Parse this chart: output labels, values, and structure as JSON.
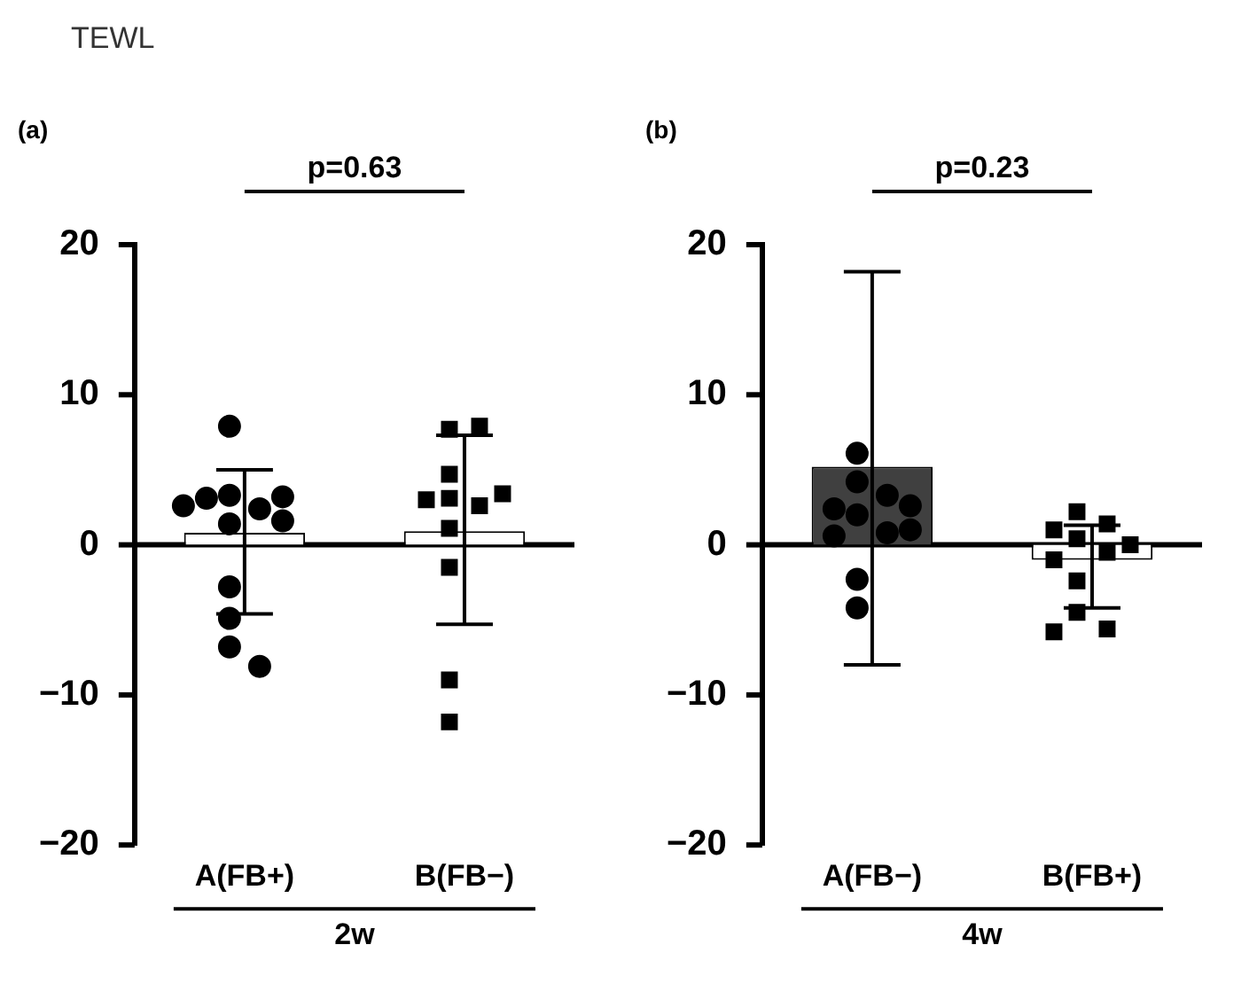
{
  "chart_data": [
    {
      "type": "bar",
      "title": "TEWL",
      "subtitle": "(a)",
      "xlabel": "2w",
      "categories": [
        "A(FB+)",
        "B(FB−)"
      ],
      "annotations": [
        "p=0.63"
      ],
      "ylim": [
        -20,
        20
      ],
      "yticks": [
        -20,
        -10,
        0,
        10,
        20
      ],
      "grid": false,
      "ref_lines": [
        {
          "axis": "y",
          "value": 0
        }
      ],
      "series": [
        {
          "type": "bar",
          "colors": [
            "#ffffff",
            "#ffffff"
          ],
          "values": [
            0.8,
            0.9
          ],
          "errors": [
            [
              -4.6,
              5.0
            ],
            [
              -5.3,
              7.3
            ]
          ]
        },
        {
          "type": "scatter",
          "marker": "circle",
          "color": "#000000",
          "x": [
            "A(FB+)",
            "A(FB+)",
            "A(FB+)",
            "A(FB+)",
            "A(FB+)",
            "A(FB+)",
            "A(FB+)",
            "A(FB+)",
            "A(FB+)",
            "A(FB+)",
            "A(FB+)",
            "A(FB+)"
          ],
          "values": [
            7.9,
            3.3,
            2.4,
            3.1,
            3.2,
            2.6,
            1.4,
            1.6,
            -2.8,
            -4.9,
            -6.8,
            -8.1
          ]
        },
        {
          "type": "scatter",
          "marker": "square",
          "color": "#000000",
          "x": [
            "B(FB−)",
            "B(FB−)",
            "B(FB−)",
            "B(FB−)",
            "B(FB−)",
            "B(FB−)",
            "B(FB−)",
            "B(FB−)",
            "B(FB−)",
            "B(FB−)",
            "B(FB−)"
          ],
          "values": [
            7.7,
            7.9,
            4.7,
            3.1,
            2.6,
            3.0,
            3.4,
            1.1,
            -1.5,
            -9.0,
            -11.8
          ]
        }
      ]
    },
    {
      "type": "bar",
      "subtitle": "(b)",
      "xlabel": "4w",
      "categories": [
        "A(FB−)",
        "B(FB+)"
      ],
      "annotations": [
        "p=0.23"
      ],
      "ylim": [
        -20,
        20
      ],
      "yticks": [
        -20,
        -10,
        0,
        10,
        20
      ],
      "grid": false,
      "ref_lines": [
        {
          "axis": "y",
          "value": 0
        }
      ],
      "series": [
        {
          "type": "bar",
          "colors": [
            "#404040",
            "#ffffff"
          ],
          "values": [
            5.2,
            -1.0
          ],
          "errors": [
            [
              -8.0,
              18.2
            ],
            [
              -4.2,
              1.3
            ]
          ]
        },
        {
          "type": "scatter",
          "marker": "circle",
          "color": "#000000",
          "x": [
            "A(FB−)",
            "A(FB−)",
            "A(FB−)",
            "A(FB−)",
            "A(FB−)",
            "A(FB−)",
            "A(FB−)",
            "A(FB−)",
            "A(FB−)",
            "A(FB−)",
            "A(FB−)"
          ],
          "values": [
            6.1,
            4.2,
            3.3,
            2.0,
            2.4,
            2.6,
            0.8,
            1.0,
            0.6,
            -2.3,
            -4.2
          ]
        },
        {
          "type": "scatter",
          "marker": "square",
          "color": "#000000",
          "x": [
            "B(FB+)",
            "B(FB+)",
            "B(FB+)",
            "B(FB+)",
            "B(FB+)",
            "B(FB+)",
            "B(FB+)",
            "B(FB+)",
            "B(FB+)",
            "B(FB+)",
            "B(FB+)"
          ],
          "values": [
            2.2,
            1.4,
            1.0,
            0.4,
            0.0,
            -0.5,
            -1.0,
            -2.4,
            -4.5,
            -5.6,
            -5.8
          ]
        }
      ]
    }
  ]
}
